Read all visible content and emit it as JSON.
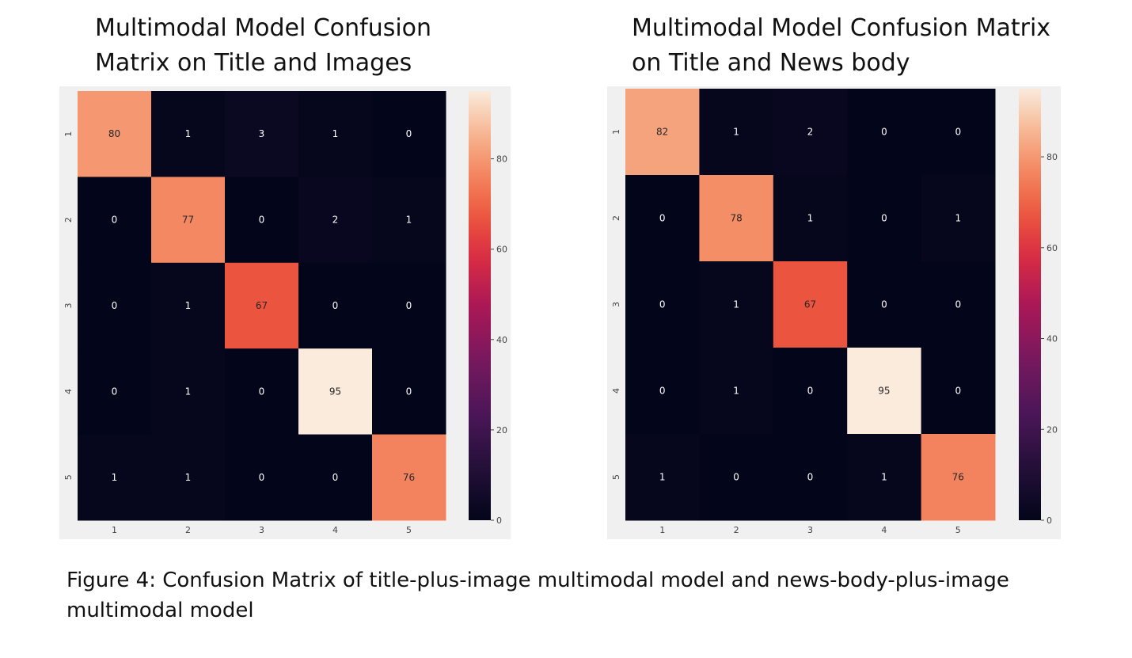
{
  "caption": "Figure 4: Confusion Matrix of title-plus-image multimodal model and news-body-plus-image multimodal model",
  "chart_data": [
    {
      "type": "heatmap",
      "title": "Multimodal Model Confusion\nMatrix on Title and Images",
      "x_ticks": [
        "1",
        "2",
        "3",
        "4",
        "5"
      ],
      "y_ticks": [
        "1",
        "2",
        "3",
        "4",
        "5"
      ],
      "matrix": [
        [
          80,
          1,
          3,
          1,
          0
        ],
        [
          0,
          77,
          0,
          2,
          1
        ],
        [
          0,
          1,
          67,
          0,
          0
        ],
        [
          0,
          1,
          0,
          95,
          0
        ],
        [
          1,
          1,
          0,
          0,
          76
        ]
      ],
      "colorbar": {
        "range": [
          0,
          95
        ],
        "ticks": [
          0,
          20,
          40,
          60,
          80
        ]
      },
      "colormap": "rocket"
    },
    {
      "type": "heatmap",
      "title": "Multimodal Model Confusion Matrix\non Title and News body",
      "x_ticks": [
        "1",
        "2",
        "3",
        "4",
        "5"
      ],
      "y_ticks": [
        "1",
        "2",
        "3",
        "4",
        "5"
      ],
      "matrix": [
        [
          82,
          1,
          2,
          0,
          0
        ],
        [
          0,
          78,
          1,
          0,
          1
        ],
        [
          0,
          1,
          67,
          0,
          0
        ],
        [
          0,
          1,
          0,
          95,
          0
        ],
        [
          1,
          0,
          0,
          1,
          76
        ]
      ],
      "colorbar": {
        "range": [
          0,
          95
        ],
        "ticks": [
          0,
          20,
          40,
          60,
          80
        ]
      },
      "colormap": "rocket"
    }
  ]
}
